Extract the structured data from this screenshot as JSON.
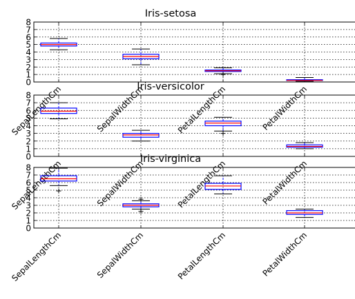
{
  "chart_data": [
    {
      "type": "box",
      "title": "Iris-setosa",
      "categories": [
        "SepalLengthCm",
        "SepalWidthCm",
        "PetalLengthCm",
        "PetalWidthCm"
      ],
      "ylim": [
        0,
        8
      ],
      "yticks": [
        0,
        1,
        2,
        3,
        4,
        5,
        6,
        7,
        8
      ],
      "grid": true,
      "boxes": [
        {
          "min": 4.3,
          "q1": 4.8,
          "median": 5.0,
          "q3": 5.2,
          "max": 5.8,
          "outliers": []
        },
        {
          "min": 2.3,
          "q1": 3.1,
          "median": 3.4,
          "q3": 3.7,
          "max": 4.4,
          "outliers": []
        },
        {
          "min": 1.1,
          "q1": 1.4,
          "median": 1.5,
          "q3": 1.6,
          "max": 1.9,
          "outliers": [
            1.0
          ]
        },
        {
          "min": 0.1,
          "q1": 0.2,
          "median": 0.2,
          "q3": 0.3,
          "max": 0.6,
          "outliers": []
        }
      ]
    },
    {
      "type": "box",
      "title": "Iris-versicolor",
      "categories": [
        "SepalLengthCm",
        "SepalWidthCm",
        "PetalLengthCm",
        "PetalWidthCm"
      ],
      "ylim": [
        0,
        8
      ],
      "yticks": [
        0,
        1,
        2,
        3,
        4,
        5,
        6,
        7,
        8
      ],
      "grid": true,
      "boxes": [
        {
          "min": 4.9,
          "q1": 5.6,
          "median": 5.9,
          "q3": 6.3,
          "max": 7.0,
          "outliers": []
        },
        {
          "min": 2.0,
          "q1": 2.5,
          "median": 2.8,
          "q3": 3.0,
          "max": 3.4,
          "outliers": []
        },
        {
          "min": 3.3,
          "q1": 4.0,
          "median": 4.35,
          "q3": 4.6,
          "max": 5.1,
          "outliers": [
            3.0
          ]
        },
        {
          "min": 1.0,
          "q1": 1.2,
          "median": 1.3,
          "q3": 1.5,
          "max": 1.8,
          "outliers": []
        }
      ]
    },
    {
      "type": "box",
      "title": "Iris-virginica",
      "categories": [
        "SepalLengthCm",
        "SepalWidthCm",
        "PetalLengthCm",
        "PetalWidthCm"
      ],
      "ylim": [
        0,
        8
      ],
      "yticks": [
        0,
        1,
        2,
        3,
        4,
        5,
        6,
        7,
        8
      ],
      "grid": true,
      "boxes": [
        {
          "min": 5.6,
          "q1": 6.2,
          "median": 6.5,
          "q3": 6.9,
          "max": 7.9,
          "outliers": [
            4.9
          ]
        },
        {
          "min": 2.5,
          "q1": 2.8,
          "median": 3.0,
          "q3": 3.2,
          "max": 3.6,
          "outliers": [
            2.2,
            3.8
          ]
        },
        {
          "min": 4.5,
          "q1": 5.1,
          "median": 5.55,
          "q3": 5.9,
          "max": 6.9,
          "outliers": []
        },
        {
          "min": 1.4,
          "q1": 1.8,
          "median": 2.0,
          "q3": 2.3,
          "max": 2.5,
          "outliers": []
        }
      ]
    }
  ],
  "colors": {
    "box": "#0000ff",
    "median": "#ff0000",
    "cap": "#000000"
  }
}
